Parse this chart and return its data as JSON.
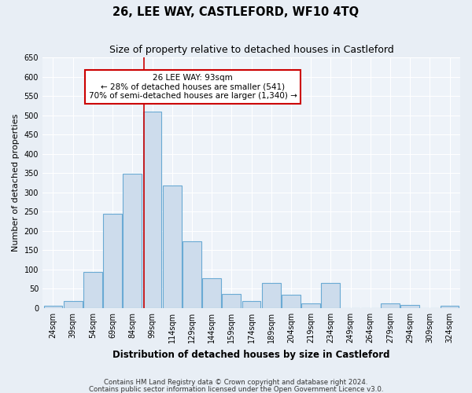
{
  "title": "26, LEE WAY, CASTLEFORD, WF10 4TQ",
  "subtitle": "Size of property relative to detached houses in Castleford",
  "xlabel": "Distribution of detached houses by size in Castleford",
  "ylabel": "Number of detached properties",
  "categories": [
    "24sqm",
    "39sqm",
    "54sqm",
    "69sqm",
    "84sqm",
    "99sqm",
    "114sqm",
    "129sqm",
    "144sqm",
    "159sqm",
    "174sqm",
    "189sqm",
    "204sqm",
    "219sqm",
    "234sqm",
    "249sqm",
    "264sqm",
    "279sqm",
    "294sqm",
    "309sqm",
    "324sqm"
  ],
  "bin_centers": [
    24,
    39,
    54,
    69,
    84,
    99,
    114,
    129,
    144,
    159,
    174,
    189,
    204,
    219,
    234,
    249,
    264,
    279,
    294,
    309,
    324
  ],
  "values": [
    5,
    18,
    93,
    245,
    348,
    510,
    318,
    173,
    78,
    37,
    18,
    65,
    35,
    13,
    65,
    0,
    0,
    13,
    8,
    0,
    5
  ],
  "bar_width": 14.2,
  "bar_color": "#cddcec",
  "bar_edge_color": "#6aaad4",
  "vline_x": 93,
  "vline_color": "#cc0000",
  "annotation_text": "26 LEE WAY: 93sqm\n← 28% of detached houses are smaller (541)\n70% of semi-detached houses are larger (1,340) →",
  "annotation_box_color": "white",
  "annotation_box_edge": "#cc0000",
  "ylim": [
    0,
    650
  ],
  "yticks": [
    0,
    50,
    100,
    150,
    200,
    250,
    300,
    350,
    400,
    450,
    500,
    550,
    600,
    650
  ],
  "xlim": [
    16,
    332
  ],
  "footnote1": "Contains HM Land Registry data © Crown copyright and database right 2024.",
  "footnote2": "Contains public sector information licensed under the Open Government Licence v3.0.",
  "background_color": "#e8eef5",
  "plot_bg_color": "#eef3f9",
  "title_fontsize": 10.5,
  "subtitle_fontsize": 9,
  "ylabel_fontsize": 8,
  "xlabel_fontsize": 8.5,
  "tick_fontsize": 7,
  "annot_fontsize": 7.5,
  "footnote_fontsize": 6.2
}
